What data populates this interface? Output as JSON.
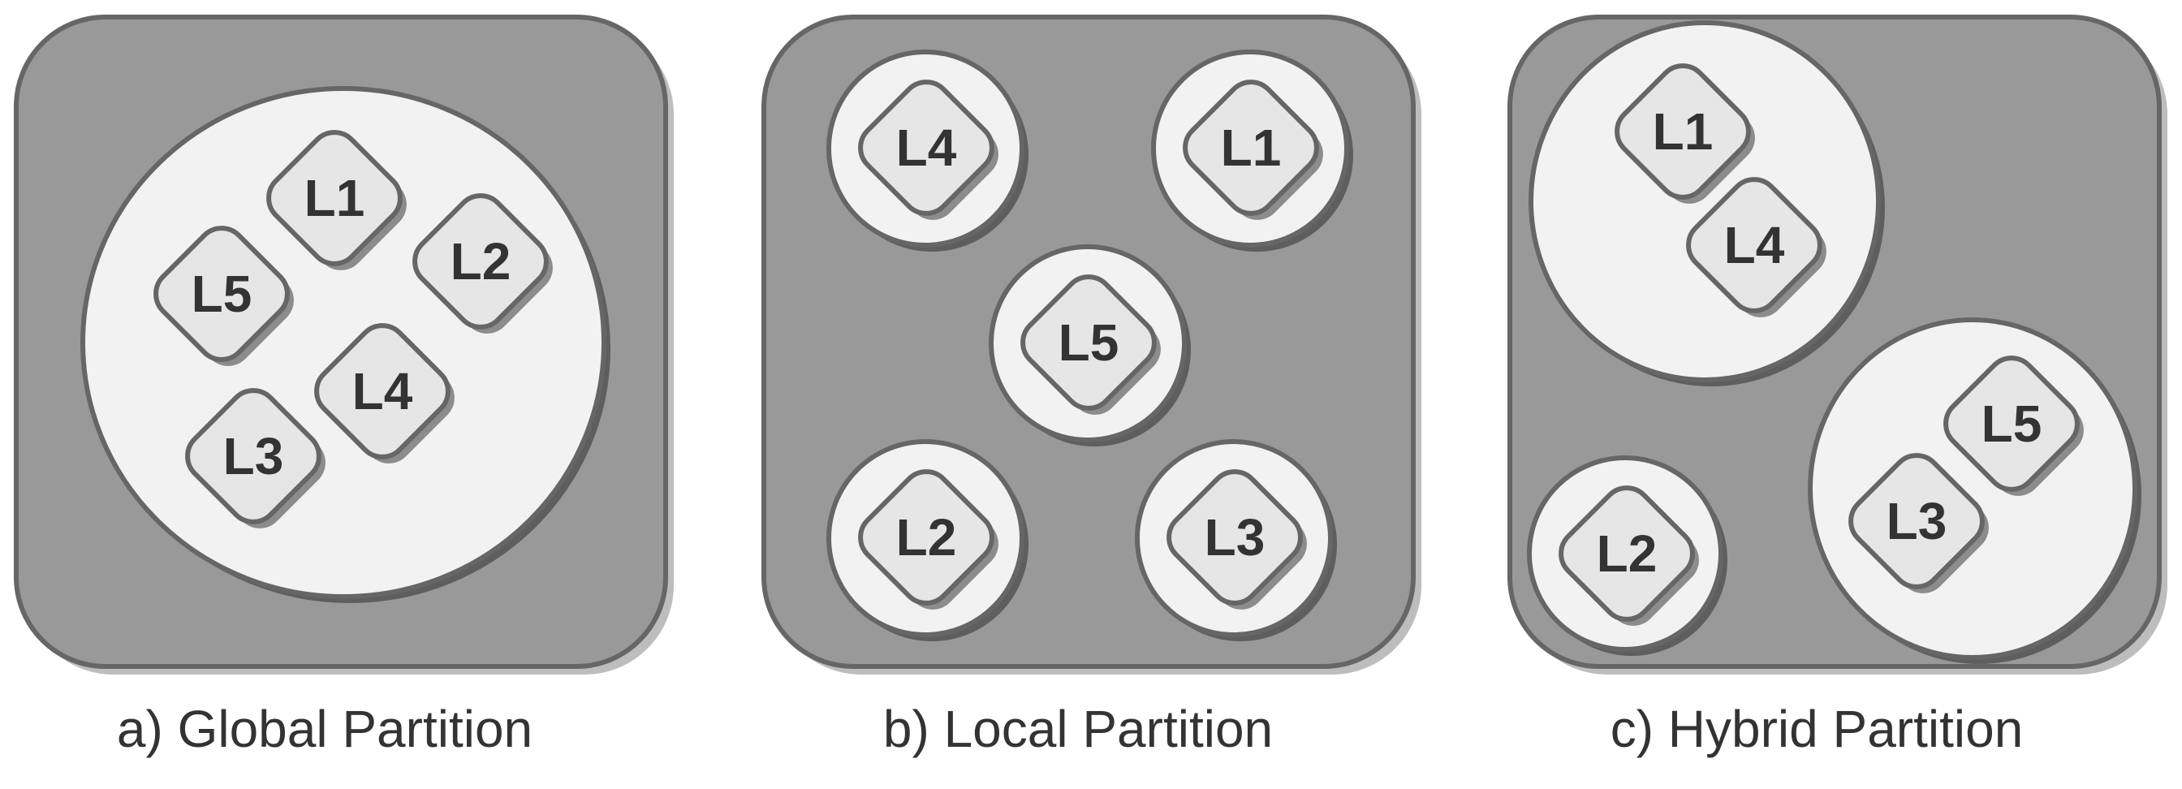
{
  "diagrams": [
    {
      "caption": "a) Global Partition",
      "groups": [
        {
          "nodes": [
            "L1",
            "L2",
            "L5",
            "L4",
            "L3"
          ]
        }
      ]
    },
    {
      "caption": "b) Local Partition",
      "groups": [
        {
          "nodes": [
            "L4"
          ]
        },
        {
          "nodes": [
            "L1"
          ]
        },
        {
          "nodes": [
            "L5"
          ]
        },
        {
          "nodes": [
            "L2"
          ]
        },
        {
          "nodes": [
            "L3"
          ]
        }
      ]
    },
    {
      "caption": "c) Hybrid Partition",
      "groups": [
        {
          "nodes": [
            "L1",
            "L4"
          ]
        },
        {
          "nodes": [
            "L5",
            "L3"
          ]
        },
        {
          "nodes": [
            "L2"
          ]
        }
      ]
    }
  ]
}
